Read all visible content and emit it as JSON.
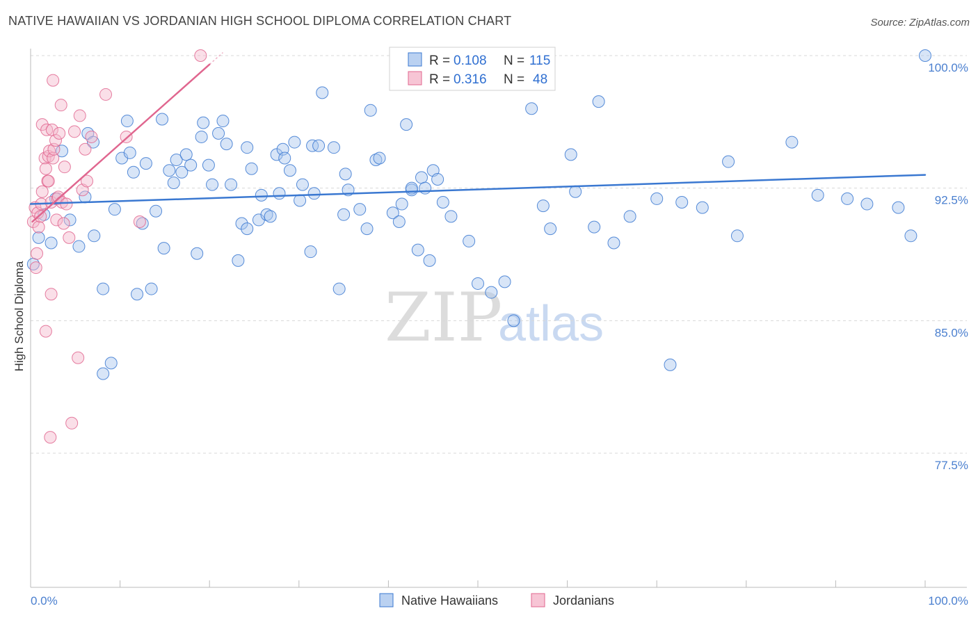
{
  "title": "NATIVE HAWAIIAN VS JORDANIAN HIGH SCHOOL DIPLOMA CORRELATION CHART",
  "source": "Source: ZipAtlas.com",
  "watermark": {
    "zip": "ZIP",
    "atlas": "atlas"
  },
  "colors": {
    "blue": "#3a78d1",
    "blue_fill": "#a9c6ee",
    "pink": "#e0668f",
    "pink_fill": "#f5b7cb",
    "grid": "#d8d8d8",
    "tick_text": "#4a7fcf"
  },
  "legend": {
    "r_label": "R =",
    "n_label": "N =",
    "rows": [
      {
        "name": "Native Hawaiians",
        "r": "0.108",
        "n": "115"
      },
      {
        "name": "Jordanians",
        "r": "0.316",
        "n": "48"
      }
    ]
  },
  "chart_data": {
    "type": "scatter",
    "title": "NATIVE HAWAIIAN VS JORDANIAN HIGH SCHOOL DIPLOMA CORRELATION CHART",
    "xlabel": "",
    "ylabel": "High School Diploma",
    "xlim": [
      0,
      100
    ],
    "ylim": [
      70.0,
      101.0
    ],
    "x_tick_labels": [
      "0.0%",
      "100.0%"
    ],
    "y_ticks": [
      {
        "value": 100.0,
        "label": "100.0%"
      },
      {
        "value": 92.5,
        "label": "92.5%"
      },
      {
        "value": 85.0,
        "label": "85.0%"
      },
      {
        "value": 77.5,
        "label": "77.5%"
      }
    ],
    "grid": true,
    "series": [
      {
        "name": "Native Hawaiians",
        "color": "#3a78d1",
        "trendline": {
          "x": [
            0,
            100
          ],
          "y": [
            91.6,
            93.25
          ]
        },
        "points": [
          [
            0.3,
            88.2
          ],
          [
            0.9,
            89.7
          ],
          [
            1.5,
            91.0
          ],
          [
            2.3,
            89.4
          ],
          [
            2.8,
            91.9
          ],
          [
            3.5,
            94.6
          ],
          [
            4.4,
            90.7
          ],
          [
            5.4,
            89.2
          ],
          [
            6.1,
            92.0
          ],
          [
            6.4,
            95.6
          ],
          [
            7.1,
            89.8
          ],
          [
            7.0,
            95.1
          ],
          [
            8.1,
            82.0
          ],
          [
            8.1,
            86.8
          ],
          [
            9.0,
            82.6
          ],
          [
            9.4,
            91.3
          ],
          [
            10.2,
            94.2
          ],
          [
            10.8,
            96.3
          ],
          [
            11.1,
            94.5
          ],
          [
            11.5,
            93.4
          ],
          [
            11.9,
            86.5
          ],
          [
            12.5,
            90.5
          ],
          [
            12.9,
            93.9
          ],
          [
            13.5,
            86.8
          ],
          [
            14.0,
            91.2
          ],
          [
            14.7,
            96.4
          ],
          [
            14.9,
            89.1
          ],
          [
            15.5,
            93.5
          ],
          [
            16.0,
            92.8
          ],
          [
            16.3,
            94.1
          ],
          [
            16.9,
            93.4
          ],
          [
            17.4,
            94.4
          ],
          [
            17.9,
            93.8
          ],
          [
            18.6,
            88.8
          ],
          [
            19.1,
            95.4
          ],
          [
            19.3,
            96.2
          ],
          [
            19.9,
            93.8
          ],
          [
            20.3,
            92.7
          ],
          [
            21.0,
            95.6
          ],
          [
            21.5,
            96.3
          ],
          [
            21.9,
            95.0
          ],
          [
            22.4,
            92.7
          ],
          [
            23.2,
            88.4
          ],
          [
            23.6,
            90.5
          ],
          [
            24.2,
            90.2
          ],
          [
            24.2,
            94.8
          ],
          [
            24.7,
            93.6
          ],
          [
            25.5,
            90.7
          ],
          [
            25.8,
            92.1
          ],
          [
            26.4,
            91.0
          ],
          [
            26.8,
            90.9
          ],
          [
            27.5,
            94.4
          ],
          [
            27.8,
            92.2
          ],
          [
            28.2,
            94.7
          ],
          [
            28.4,
            94.2
          ],
          [
            29.0,
            93.5
          ],
          [
            29.5,
            95.1
          ],
          [
            30.1,
            91.8
          ],
          [
            30.4,
            92.7
          ],
          [
            31.3,
            88.9
          ],
          [
            31.5,
            94.9
          ],
          [
            31.7,
            92.2
          ],
          [
            32.2,
            94.9
          ],
          [
            32.6,
            97.9
          ],
          [
            33.9,
            94.8
          ],
          [
            34.5,
            86.8
          ],
          [
            35.0,
            91.0
          ],
          [
            35.2,
            93.3
          ],
          [
            35.5,
            92.4
          ],
          [
            36.8,
            91.3
          ],
          [
            37.6,
            90.2
          ],
          [
            38.0,
            96.9
          ],
          [
            38.6,
            94.1
          ],
          [
            39.0,
            94.2
          ],
          [
            40.5,
            91.1
          ],
          [
            41.2,
            90.6
          ],
          [
            41.5,
            91.6
          ],
          [
            42.0,
            96.1
          ],
          [
            42.6,
            92.4
          ],
          [
            42.6,
            92.5
          ],
          [
            43.3,
            89.0
          ],
          [
            43.7,
            93.1
          ],
          [
            44.1,
            92.5
          ],
          [
            44.6,
            88.4
          ],
          [
            45.0,
            93.5
          ],
          [
            45.5,
            93.0
          ],
          [
            46.1,
            91.7
          ],
          [
            47.0,
            90.9
          ],
          [
            49.0,
            89.5
          ],
          [
            50.0,
            87.1
          ],
          [
            51.5,
            86.6
          ],
          [
            53.0,
            87.2
          ],
          [
            54.0,
            85.0
          ],
          [
            56.0,
            97.0
          ],
          [
            57.3,
            91.5
          ],
          [
            58.1,
            90.2
          ],
          [
            60.4,
            94.4
          ],
          [
            60.9,
            92.3
          ],
          [
            63.0,
            90.3
          ],
          [
            63.5,
            97.4
          ],
          [
            65.2,
            89.4
          ],
          [
            67.0,
            90.9
          ],
          [
            70.0,
            91.9
          ],
          [
            71.5,
            82.5
          ],
          [
            72.8,
            91.7
          ],
          [
            75.1,
            91.4
          ],
          [
            78.0,
            94.0
          ],
          [
            79.0,
            89.8
          ],
          [
            85.1,
            95.1
          ],
          [
            88.0,
            92.1
          ],
          [
            91.3,
            91.9
          ],
          [
            93.5,
            91.6
          ],
          [
            97.0,
            91.4
          ],
          [
            98.4,
            89.8
          ],
          [
            100.0,
            100.0
          ]
        ]
      },
      {
        "name": "Jordanians",
        "color": "#e0668f",
        "trendline": {
          "x": [
            0.2,
            20.0
          ],
          "y": [
            90.6,
            99.5
          ]
        },
        "points": [
          [
            0.3,
            90.6
          ],
          [
            0.5,
            91.4
          ],
          [
            0.6,
            88.0
          ],
          [
            0.7,
            88.8
          ],
          [
            0.8,
            91.1
          ],
          [
            0.9,
            90.3
          ],
          [
            1.1,
            90.9
          ],
          [
            1.2,
            91.6
          ],
          [
            1.3,
            96.1
          ],
          [
            1.3,
            92.3
          ],
          [
            1.6,
            94.2
          ],
          [
            1.7,
            93.6
          ],
          [
            1.7,
            84.4
          ],
          [
            1.8,
            95.8
          ],
          [
            1.9,
            92.9
          ],
          [
            2.0,
            94.3
          ],
          [
            2.0,
            92.9
          ],
          [
            2.1,
            94.6
          ],
          [
            2.2,
            78.4
          ],
          [
            2.3,
            91.7
          ],
          [
            2.3,
            86.5
          ],
          [
            2.4,
            95.8
          ],
          [
            2.5,
            94.2
          ],
          [
            2.5,
            98.6
          ],
          [
            2.6,
            94.7
          ],
          [
            2.8,
            95.2
          ],
          [
            2.9,
            90.7
          ],
          [
            3.0,
            91.9
          ],
          [
            3.1,
            92.0
          ],
          [
            3.2,
            95.6
          ],
          [
            3.4,
            97.2
          ],
          [
            3.5,
            91.7
          ],
          [
            3.7,
            90.5
          ],
          [
            3.8,
            93.7
          ],
          [
            4.0,
            91.6
          ],
          [
            4.3,
            89.7
          ],
          [
            4.6,
            79.2
          ],
          [
            4.9,
            95.7
          ],
          [
            5.3,
            82.9
          ],
          [
            5.5,
            96.6
          ],
          [
            5.8,
            92.4
          ],
          [
            6.1,
            94.7
          ],
          [
            6.3,
            92.9
          ],
          [
            6.8,
            95.4
          ],
          [
            8.4,
            97.8
          ],
          [
            10.7,
            95.4
          ],
          [
            12.2,
            90.6
          ],
          [
            19.0,
            100.0
          ]
        ]
      }
    ]
  }
}
